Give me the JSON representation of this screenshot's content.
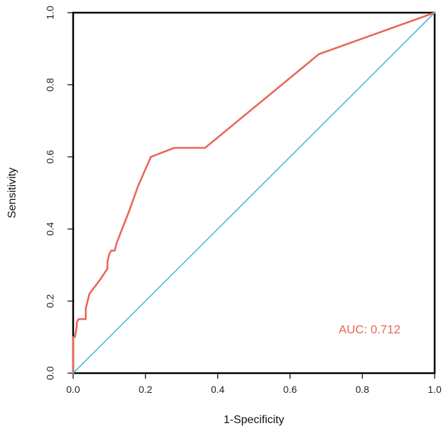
{
  "chart_data": {
    "type": "line",
    "title": "",
    "xlabel": "1-Specificity",
    "ylabel": "Sensitivity",
    "xlim": [
      0,
      1
    ],
    "ylim": [
      0,
      1
    ],
    "xticks": [
      "0.0",
      "0.2",
      "0.4",
      "0.6",
      "0.8",
      "1.0"
    ],
    "yticks": [
      "0.0",
      "0.2",
      "0.4",
      "0.6",
      "0.8",
      "1.0"
    ],
    "grid": false,
    "legend": "none",
    "series": [
      {
        "color": "#e8675a",
        "x": [
          0.0,
          0.0,
          0.005,
          0.01,
          0.01,
          0.015,
          0.035,
          0.035,
          0.045,
          0.06,
          0.075,
          0.095,
          0.095,
          0.1,
          0.105,
          0.115,
          0.12,
          0.155,
          0.18,
          0.215,
          0.28,
          0.365,
          0.68,
          1.0
        ],
        "y": [
          0.0,
          0.1,
          0.1,
          0.13,
          0.14,
          0.15,
          0.15,
          0.18,
          0.22,
          0.24,
          0.26,
          0.29,
          0.31,
          0.33,
          0.34,
          0.34,
          0.36,
          0.45,
          0.52,
          0.6,
          0.625,
          0.625,
          0.885,
          1.0
        ]
      },
      {
        "color": "#4db8d8",
        "x": [
          0.0,
          1.0
        ],
        "y": [
          0.0,
          1.0
        ]
      }
    ],
    "annotations": [
      {
        "text": "AUC: 0.712",
        "x": 0.82,
        "y": 0.11,
        "color": "#e8675a"
      }
    ]
  }
}
